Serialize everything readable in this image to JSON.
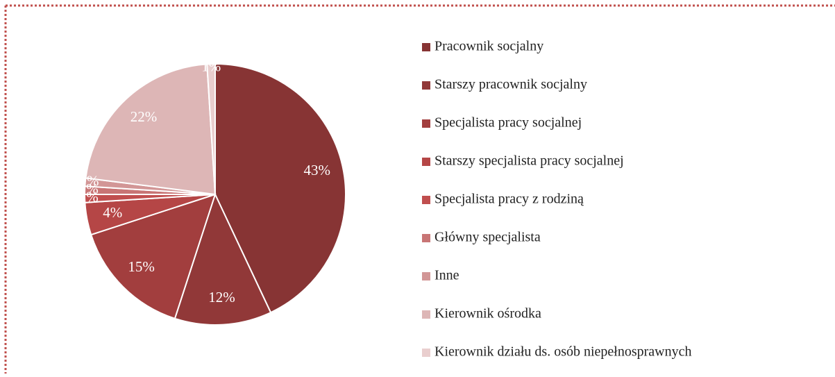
{
  "chart_data": {
    "type": "pie",
    "categories": [
      "Pracownik socjalny",
      "Starszy pracownik socjalny",
      "Specjalista pracy socjalnej",
      "Starszy specjalista pracy socjalnej",
      "Specjalista pracy z rodziną",
      "Główny specjalista",
      "Inne",
      "Kierownik ośrodka",
      "Kierownik działu ds. osób niepełnosprawnych"
    ],
    "values": [
      43,
      12,
      15,
      4,
      1,
      1,
      1,
      22,
      1
    ],
    "value_labels": [
      "43%",
      "12%",
      "15%",
      "4%",
      "1%",
      "1%",
      "1%",
      "22%",
      "1%"
    ],
    "colors": [
      "#873434",
      "#913838",
      "#a23e3e",
      "#b54646",
      "#c04e4e",
      "#c87575",
      "#d29696",
      "#ddb6b6",
      "#e9cece"
    ],
    "legend": "right"
  }
}
